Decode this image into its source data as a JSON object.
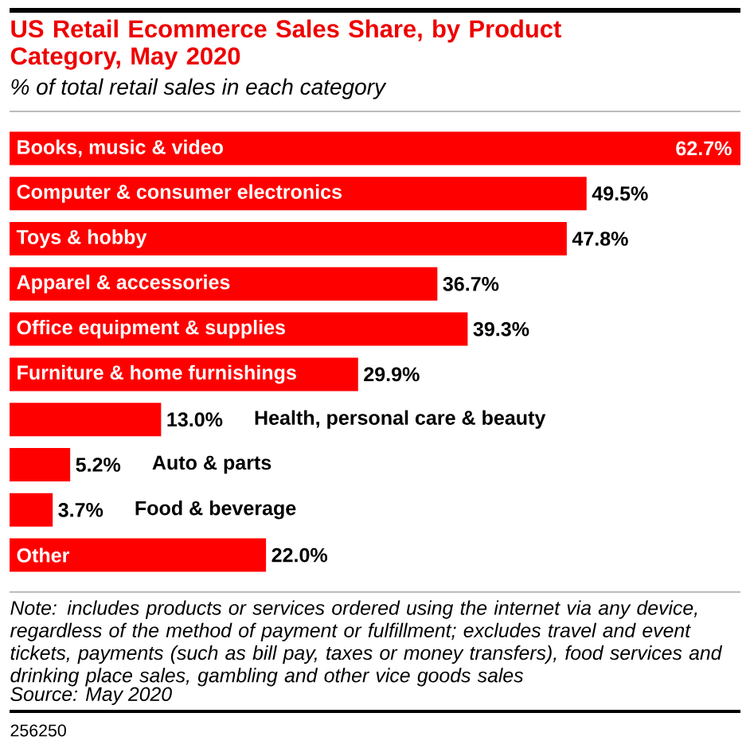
{
  "chart_data": {
    "type": "bar",
    "orientation": "horizontal",
    "title": "US Retail Ecommerce Sales Share, by Product Category, May 2020",
    "subtitle": "% of total retail sales in each category",
    "categories": [
      "Books, music & video",
      "Computer & consumer electronics",
      "Toys & hobby",
      "Apparel & accessories",
      "Office equipment & supplies",
      "Furniture & home furnishings",
      "Health, personal care & beauty",
      "Auto & parts",
      "Food & beverage",
      "Other"
    ],
    "values": [
      62.7,
      49.5,
      47.8,
      36.7,
      39.3,
      29.9,
      13.0,
      5.2,
      3.7,
      22.0
    ],
    "value_labels": [
      "62.7%",
      "49.5%",
      "47.8%",
      "36.7%",
      "39.3%",
      "29.9%",
      "13.0%",
      "5.2%",
      "3.7%",
      "22.0%"
    ],
    "color": "#ff0000",
    "annotations": [
      "Note: includes products or services ordered using the internet via any device, regardless of the method of payment or fulfillment; excludes travel and event tickets, payments (such as bill pay, taxes or money transfers), food services and drinking place sales, gambling and other vice goods sales",
      "Source: May 2020",
      "256250"
    ]
  }
}
